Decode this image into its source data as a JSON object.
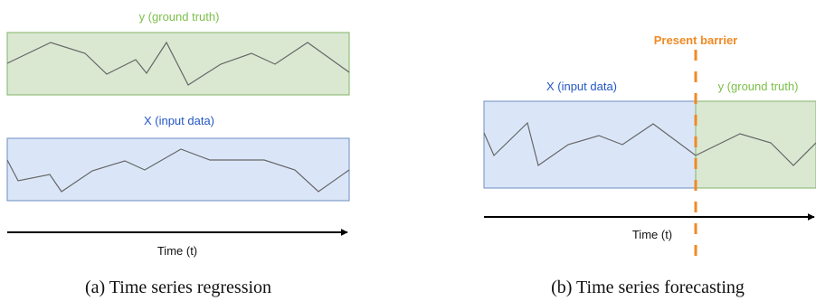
{
  "colors": {
    "green_fill": "#dae8d2",
    "green_stroke": "#82b366",
    "green_text": "#7cbf4a",
    "blue_fill": "#dae6f8",
    "blue_stroke": "#6c8ebf",
    "blue_text": "#2457c5",
    "orange": "#f08a24",
    "series_line": "#666666",
    "axis": "#000000"
  },
  "panel_a": {
    "y_box_label": "y (ground truth)",
    "x_box_label": "X (input data)",
    "axis_label": "Time (t)",
    "caption": "(a) Time series regression"
  },
  "panel_b": {
    "barrier_label": "Present barrier",
    "x_box_label": "X (input data)",
    "y_box_label": "y (ground truth)",
    "axis_label": "Time (t)",
    "caption": "(b) Time series forecasting"
  }
}
